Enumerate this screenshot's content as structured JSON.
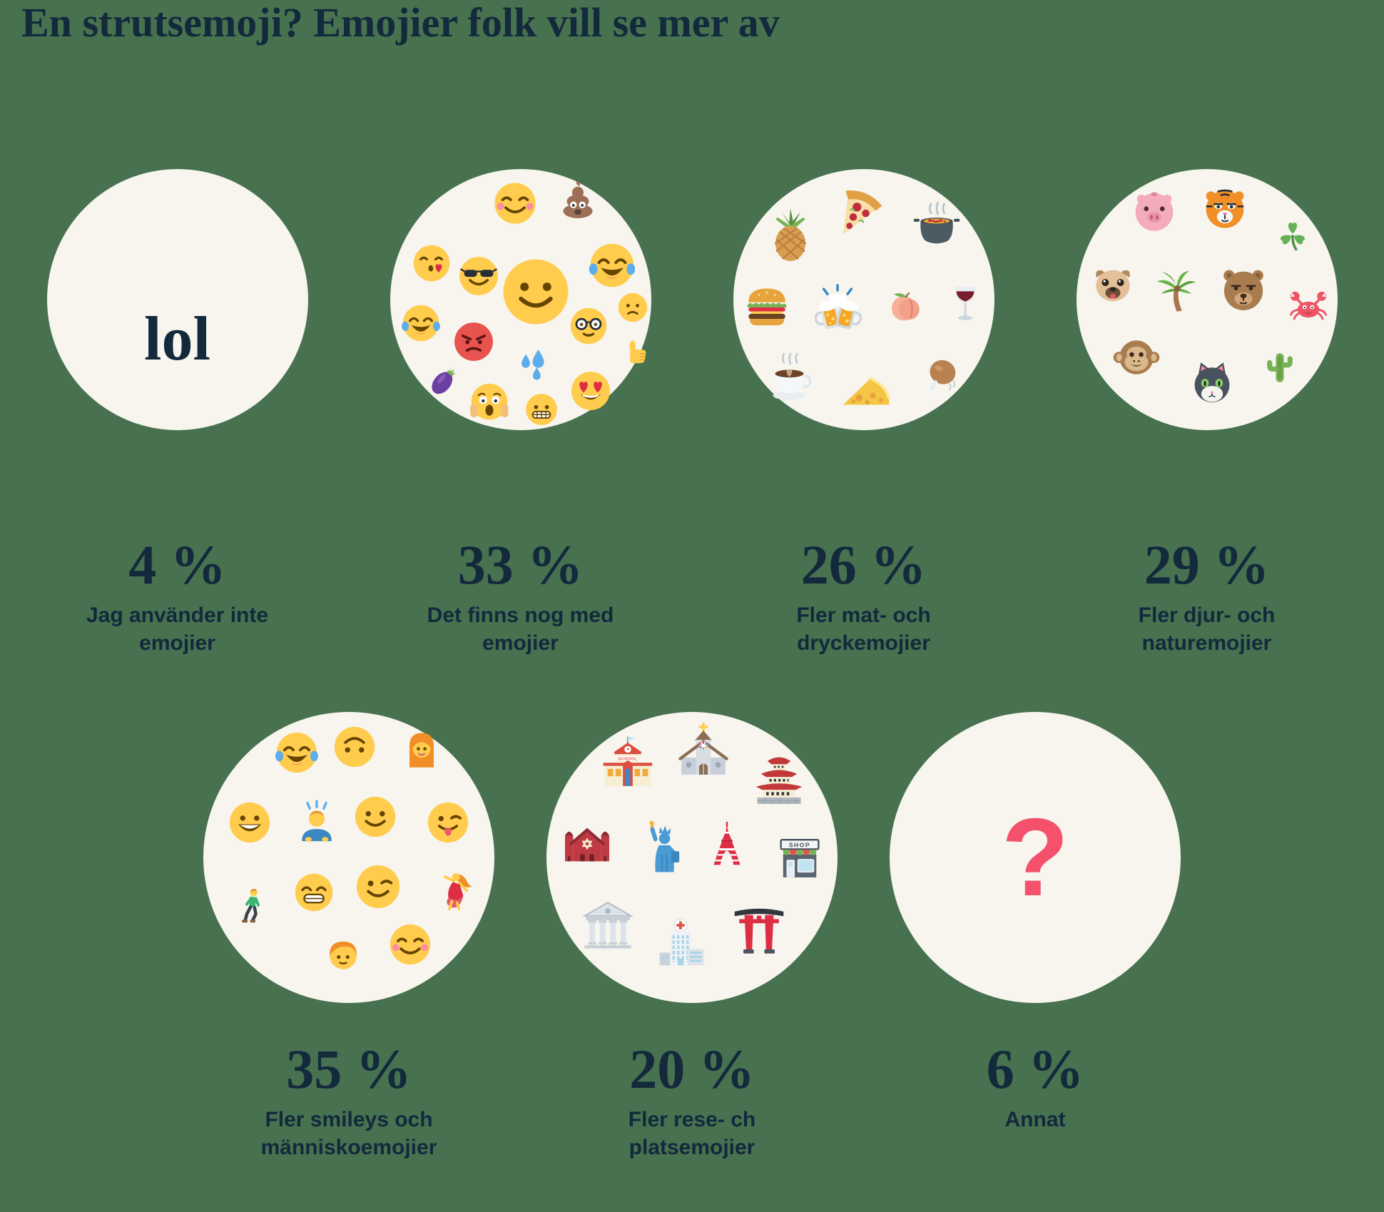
{
  "title": "En strutsemoji? Emojier folk vill se mer av",
  "colors": {
    "background": "#47714f",
    "bubble": "#f7f5ee",
    "text": "#13293c",
    "question_mark": "#f5516d"
  },
  "signs": {
    "school": "SCHOOL",
    "shop": "SHOP"
  },
  "chart_data": {
    "type": "pictorial-percentage",
    "title": "En strutsemoji? Emojier folk vill se mer av",
    "categories": [
      "Jag använder inte emojier",
      "Det finns nog med emojier",
      "Fler mat- och dryckemojier",
      "Fler djur- och naturemojier",
      "Fler smileys och människoemojier",
      "Fler rese- ch platsemojier",
      "Annat"
    ],
    "values": [
      4,
      33,
      26,
      29,
      35,
      20,
      6
    ],
    "unit": "%",
    "legend": "none",
    "layout": "two rows of emoji-filled circles with percent labels below"
  },
  "rows": [
    {
      "items": [
        {
          "key": "inte",
          "percent": "4 %",
          "label": "Jag använder inte\nemojier",
          "bubble_text": "lol",
          "bubble_text_style": "word"
        },
        {
          "key": "nog",
          "percent": "33 %",
          "label": "Det finns nog med\nemojier",
          "icons": [
            {
              "name": "blush",
              "x": 48,
              "y": 13,
              "s": 17
            },
            {
              "name": "poop",
              "x": 72,
              "y": 12,
              "s": 17
            },
            {
              "name": "kiss",
              "x": 16,
              "y": 36,
              "s": 15
            },
            {
              "name": "sunglasses",
              "x": 34,
              "y": 41,
              "s": 16
            },
            {
              "name": "slight",
              "x": 56,
              "y": 47,
              "s": 27
            },
            {
              "name": "joy",
              "x": 85,
              "y": 37,
              "s": 18
            },
            {
              "name": "joy",
              "x": 12,
              "y": 59,
              "s": 15
            },
            {
              "name": "angry",
              "x": 32,
              "y": 66,
              "s": 16
            },
            {
              "name": "frowny",
              "x": 93,
              "y": 53,
              "s": 12
            },
            {
              "name": "nerd",
              "x": 76,
              "y": 60,
              "s": 15
            },
            {
              "name": "thumbs",
              "x": 94,
              "y": 70,
              "s": 13
            },
            {
              "name": "sweat",
              "x": 55,
              "y": 75,
              "s": 15
            },
            {
              "name": "eggplant",
              "x": 21,
              "y": 81,
              "s": 17
            },
            {
              "name": "scream",
              "x": 38,
              "y": 89,
              "s": 15
            },
            {
              "name": "grimace",
              "x": 58,
              "y": 92,
              "s": 13
            },
            {
              "name": "hearteyes",
              "x": 77,
              "y": 85,
              "s": 16
            }
          ]
        },
        {
          "key": "mat",
          "percent": "26 %",
          "label": "Fler mat- och\ndryckemojier",
          "icons": [
            {
              "name": "pineapple",
              "x": 22,
              "y": 25,
              "s": 24
            },
            {
              "name": "pizza",
              "x": 48,
              "y": 17,
              "s": 24
            },
            {
              "name": "pot",
              "x": 78,
              "y": 22,
              "s": 22
            },
            {
              "name": "burger",
              "x": 13,
              "y": 52,
              "s": 22
            },
            {
              "name": "beers",
              "x": 40,
              "y": 54,
              "s": 24
            },
            {
              "name": "peach",
              "x": 66,
              "y": 52,
              "s": 18
            },
            {
              "name": "wine",
              "x": 89,
              "y": 52,
              "s": 17
            },
            {
              "name": "coffee",
              "x": 22,
              "y": 81,
              "s": 21
            },
            {
              "name": "cheese",
              "x": 51,
              "y": 85,
              "s": 22
            },
            {
              "name": "chicken",
              "x": 80,
              "y": 80,
              "s": 19
            }
          ]
        },
        {
          "key": "djur",
          "percent": "29 %",
          "label": "Fler djur- och\nnaturemojier",
          "icons": [
            {
              "name": "pig",
              "x": 30,
              "y": 16,
              "s": 18
            },
            {
              "name": "tiger",
              "x": 57,
              "y": 15,
              "s": 18
            },
            {
              "name": "shamrock",
              "x": 83,
              "y": 26,
              "s": 16
            },
            {
              "name": "pug",
              "x": 14,
              "y": 44,
              "s": 17
            },
            {
              "name": "palm",
              "x": 38,
              "y": 47,
              "s": 20
            },
            {
              "name": "bear",
              "x": 64,
              "y": 46,
              "s": 19
            },
            {
              "name": "crab",
              "x": 89,
              "y": 52,
              "s": 16
            },
            {
              "name": "monkey",
              "x": 23,
              "y": 72,
              "s": 18
            },
            {
              "name": "cat",
              "x": 52,
              "y": 82,
              "s": 18
            },
            {
              "name": "cactus",
              "x": 78,
              "y": 76,
              "s": 15
            }
          ]
        }
      ]
    },
    {
      "items": [
        {
          "key": "smileys",
          "percent": "35 %",
          "label": "Fler smileys och\nmänniskoemojier",
          "icons": [
            {
              "name": "joy",
              "x": 32,
              "y": 14,
              "s": 15
            },
            {
              "name": "upside",
              "x": 52,
              "y": 12,
              "s": 15
            },
            {
              "name": "woman",
              "x": 75,
              "y": 13,
              "s": 16
            },
            {
              "name": "grin",
              "x": 16,
              "y": 38,
              "s": 15
            },
            {
              "name": "bowing",
              "x": 39,
              "y": 38,
              "s": 16
            },
            {
              "name": "slight",
              "x": 59,
              "y": 36,
              "s": 15
            },
            {
              "name": "winktongue",
              "x": 84,
              "y": 38,
              "s": 15
            },
            {
              "name": "walking",
              "x": 17,
              "y": 67,
              "s": 14
            },
            {
              "name": "beaming",
              "x": 38,
              "y": 62,
              "s": 14
            },
            {
              "name": "wink",
              "x": 60,
              "y": 60,
              "s": 16
            },
            {
              "name": "dancer",
              "x": 86,
              "y": 62,
              "s": 15
            },
            {
              "name": "boy",
              "x": 48,
              "y": 83,
              "s": 14
            },
            {
              "name": "blush",
              "x": 71,
              "y": 80,
              "s": 15
            }
          ]
        },
        {
          "key": "rese",
          "percent": "20 %",
          "label": "Fler rese- ch\nplatsemojier",
          "icons": [
            {
              "name": "school",
              "x": 28,
              "y": 18,
              "s": 21
            },
            {
              "name": "church",
              "x": 54,
              "y": 14,
              "s": 21
            },
            {
              "name": "castle",
              "x": 80,
              "y": 23,
              "s": 22
            },
            {
              "name": "synagogue",
              "x": 14,
              "y": 44,
              "s": 20
            },
            {
              "name": "liberty",
              "x": 40,
              "y": 47,
              "s": 21
            },
            {
              "name": "tokyotower",
              "x": 62,
              "y": 46,
              "s": 19
            },
            {
              "name": "shop",
              "x": 87,
              "y": 50,
              "s": 19
            },
            {
              "name": "classical",
              "x": 21,
              "y": 73,
              "s": 21
            },
            {
              "name": "hospital",
              "x": 46,
              "y": 80,
              "s": 20
            },
            {
              "name": "torii",
              "x": 73,
              "y": 75,
              "s": 20
            }
          ]
        },
        {
          "key": "annat",
          "percent": "6 %",
          "label": "Annat",
          "bubble_text": "?",
          "bubble_text_style": "question"
        }
      ]
    }
  ]
}
